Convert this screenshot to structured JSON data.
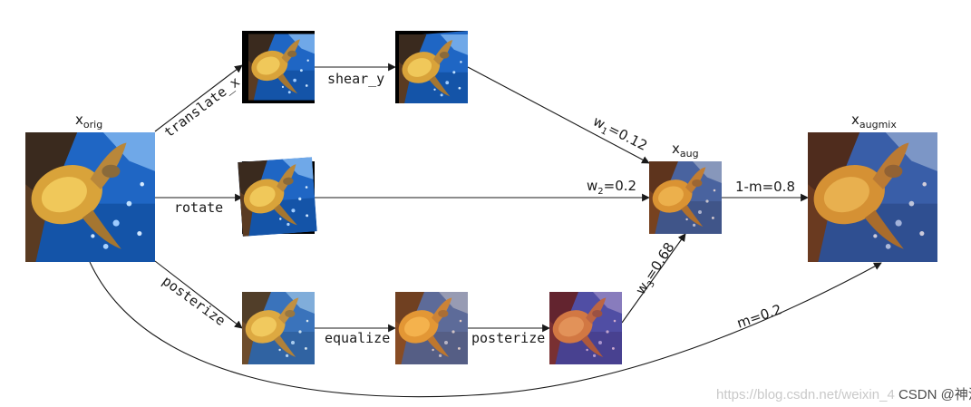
{
  "nodes": {
    "orig": {
      "main": "x",
      "sub": "orig"
    },
    "aug": {
      "main": "x",
      "sub": "aug"
    },
    "augmix": {
      "main": "x",
      "sub": "augmix"
    }
  },
  "edges": {
    "translate_x": "translate_x",
    "shear_y": "shear_y",
    "rotate": "rotate",
    "posterize_1": "posterize",
    "equalize": "equalize",
    "posterize_2": "posterize",
    "w1": {
      "main": "w",
      "sub": "1",
      "rest": "=0.12"
    },
    "w2": {
      "main": "w",
      "sub": "2",
      "rest": "=0.2"
    },
    "w3": {
      "main": "w",
      "sub": "3",
      "rest": "=0.68"
    },
    "one_minus_m": "1-m=0.8",
    "m": "m=0.2"
  },
  "watermark": {
    "url": "https://blog.csdn.net/weixin_4",
    "brand": "CSDN @神洛华"
  },
  "colors": {
    "ocean_deep": "#0b3f8a",
    "ocean_light": "#2f7fd6",
    "turtle_gold": "#d9a33a",
    "turtle_dark": "#7a5316",
    "reef": "#3a2a1e"
  }
}
